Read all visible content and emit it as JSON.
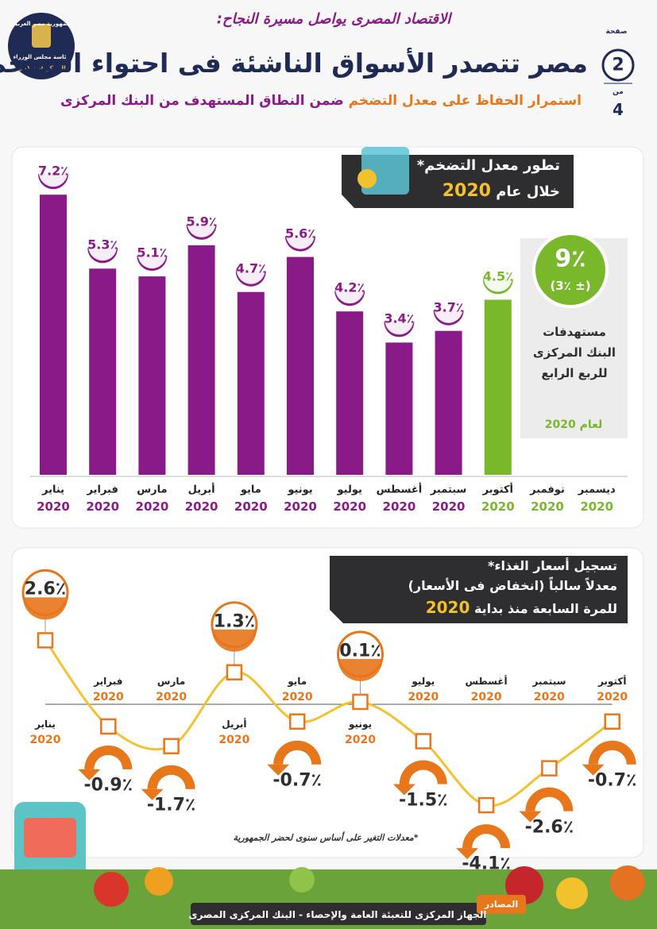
{
  "header": {
    "kicker": "الاقتصاد المصرى يواصل مسيرة النجاح:",
    "title": "مصر تتصدر الأسواق الناشئة فى احتواء التضخم",
    "subtitle_part1": "استمرار الحفاظ على معدل التضخم",
    "subtitle_part2": "ضمن النطاق المستهدف من البنك المركزى"
  },
  "page_indicator": {
    "page_label": "صفحة",
    "page": 2,
    "of_label": "من",
    "total": 4
  },
  "logo": {
    "line1": "جمهورية مصر العربية",
    "line2": "رئاسة مجلس الوزراء",
    "line3": "المركز الإعلامى"
  },
  "chart_data": [
    {
      "type": "bar",
      "title": "تطور معدل التضخم*",
      "subtitle": "خلال عام",
      "subtitle_year": "2020",
      "categories": [
        "يناير",
        "فبراير",
        "مارس",
        "أبريل",
        "مايو",
        "يونيو",
        "يوليو",
        "أغسطس",
        "سبتمبر",
        "أكتوبر",
        "نوفمبر",
        "ديسمبر"
      ],
      "category_year": "2020",
      "values": [
        7.2,
        5.3,
        5.1,
        5.9,
        4.7,
        5.6,
        4.2,
        3.4,
        3.7,
        4.5,
        null,
        null
      ],
      "value_labels": [
        "7.2٪",
        "5.3٪",
        "5.1٪",
        "5.9٪",
        "4.7٪",
        "5.6٪",
        "4.2٪",
        "3.4٪",
        "3.7٪",
        "4.5٪",
        null,
        null
      ],
      "colors": [
        "#8b1a89",
        "#8b1a89",
        "#8b1a89",
        "#8b1a89",
        "#8b1a89",
        "#8b1a89",
        "#8b1a89",
        "#8b1a89",
        "#8b1a89",
        "#78b82a",
        "#78b82a",
        "#78b82a"
      ],
      "ylim": [
        0,
        8
      ],
      "target": {
        "label": "9٪",
        "range": "(± 3٪)",
        "text": "مستهدفات البنك المركزى للربع الرابع",
        "year_text": "لعام 2020"
      }
    },
    {
      "type": "line",
      "title": "تسجيل أسعار الغذاء*",
      "subtitle": "معدلاً سالباً (انخفاض فى الأسعار)",
      "subtitle2": "للمرة السابعة منذ بداية",
      "subtitle_year": "2020",
      "categories": [
        "يناير",
        "فبراير",
        "مارس",
        "أبريل",
        "مايو",
        "يونيو",
        "يوليو",
        "أغسطس",
        "سبتمبر",
        "أكتوبر"
      ],
      "category_year": "2020",
      "values": [
        2.6,
        -0.9,
        -1.7,
        1.3,
        -0.7,
        0.1,
        -1.5,
        -4.1,
        -2.6,
        -0.7
      ],
      "value_labels": [
        "2.6٪",
        "-0.9٪",
        "-1.7٪",
        "1.3٪",
        "-0.7٪",
        "0.1٪",
        "-1.5٪",
        "-4.1٪",
        "-2.6٪",
        "-0.7٪"
      ],
      "color": "#f3c230",
      "marker_color": "#e8761b",
      "ylim": [
        -5,
        3
      ],
      "footnote": "*معدلات التغير على أساس سنوى لحضر الجمهورية"
    }
  ],
  "sources": {
    "label": "المصادر",
    "text": "الجهاز المركزى للتعبئة العامة والإحصاء - البنك المركزى المصرى"
  }
}
